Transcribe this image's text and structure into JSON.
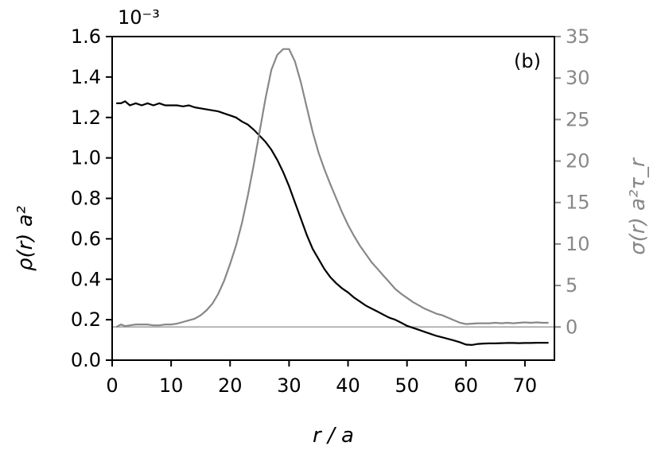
{
  "chart_data": {
    "type": "line",
    "panel_label": "(b)",
    "xlabel": "r / a",
    "ylabel_left": "ρ(r)   a²",
    "ylabel_right": "σ(r)   a²τ_r",
    "y_left_multiplier": "10⁻³",
    "xlim": [
      0,
      75
    ],
    "ylim_left": [
      0.0,
      1.6
    ],
    "ylim_right": [
      -4.0,
      35.0
    ],
    "x_ticks": [
      0,
      10,
      20,
      30,
      40,
      50,
      60,
      70
    ],
    "y_left_ticks": [
      "0.0",
      "0.2",
      "0.4",
      "0.6",
      "0.8",
      "1.0",
      "1.2",
      "1.4",
      "1.6"
    ],
    "y_right_ticks": [
      0,
      5,
      10,
      15,
      20,
      25,
      30,
      35
    ],
    "reference_line_right": 0,
    "colors": {
      "rho": "#000000",
      "sigma": "#888888",
      "reference": "#aaaaaa",
      "right_axis": "#888888"
    },
    "series": [
      {
        "axis": "left",
        "x": [
          0.7,
          1.5,
          2.2,
          3,
          4,
          5,
          6,
          7,
          8,
          9,
          10,
          11,
          12,
          13,
          14,
          15,
          16,
          17,
          18,
          19,
          20,
          21,
          22,
          23,
          24,
          25,
          26,
          27,
          28,
          29,
          30,
          31,
          32,
          33,
          34,
          35,
          36,
          37,
          38,
          39,
          40,
          41,
          42,
          43,
          44,
          45,
          46,
          47,
          48,
          49,
          50,
          51,
          52,
          53,
          54,
          55,
          56,
          57,
          58,
          59,
          60,
          61,
          62,
          63,
          64,
          65,
          66,
          67,
          68,
          69,
          70,
          71,
          72,
          73,
          74
        ],
        "y": [
          1.27,
          1.27,
          1.28,
          1.26,
          1.27,
          1.26,
          1.27,
          1.26,
          1.27,
          1.26,
          1.26,
          1.26,
          1.255,
          1.26,
          1.25,
          1.245,
          1.24,
          1.235,
          1.23,
          1.22,
          1.21,
          1.2,
          1.18,
          1.165,
          1.14,
          1.11,
          1.08,
          1.04,
          0.99,
          0.93,
          0.86,
          0.78,
          0.7,
          0.62,
          0.55,
          0.5,
          0.45,
          0.41,
          0.38,
          0.355,
          0.335,
          0.31,
          0.29,
          0.27,
          0.255,
          0.24,
          0.225,
          0.21,
          0.2,
          0.185,
          0.17,
          0.16,
          0.15,
          0.14,
          0.13,
          0.12,
          0.113,
          0.105,
          0.097,
          0.088,
          0.077,
          0.075,
          0.08,
          0.082,
          0.083,
          0.083,
          0.084,
          0.085,
          0.085,
          0.084,
          0.085,
          0.085,
          0.086,
          0.086,
          0.086
        ]
      },
      {
        "axis": "right",
        "x": [
          0.7,
          1.5,
          2.2,
          3,
          4,
          5,
          6,
          7,
          8,
          9,
          10,
          11,
          12,
          13,
          14,
          15,
          16,
          17,
          18,
          19,
          20,
          21,
          22,
          23,
          24,
          25,
          26,
          27,
          28,
          29,
          30,
          31,
          32,
          33,
          34,
          35,
          36,
          37,
          38,
          39,
          40,
          41,
          42,
          43,
          44,
          45,
          46,
          47,
          48,
          49,
          50,
          51,
          52,
          53,
          54,
          55,
          56,
          57,
          58,
          59,
          60,
          61,
          62,
          63,
          64,
          65,
          66,
          67,
          68,
          69,
          70,
          71,
          72,
          73,
          74
        ],
        "y": [
          0.0,
          0.3,
          0.1,
          0.2,
          0.3,
          0.3,
          0.3,
          0.2,
          0.2,
          0.3,
          0.3,
          0.4,
          0.6,
          0.8,
          1.0,
          1.4,
          2.0,
          2.8,
          4.0,
          5.6,
          7.6,
          9.8,
          12.5,
          15.8,
          19.5,
          23.5,
          27.5,
          31.0,
          32.8,
          33.5,
          33.5,
          32.0,
          29.5,
          26.5,
          23.5,
          21.0,
          19.0,
          17.2,
          15.5,
          13.8,
          12.3,
          11.0,
          9.8,
          8.8,
          7.8,
          7.0,
          6.2,
          5.4,
          4.6,
          4.0,
          3.5,
          3.0,
          2.6,
          2.2,
          1.9,
          1.6,
          1.4,
          1.1,
          0.8,
          0.5,
          0.35,
          0.4,
          0.45,
          0.45,
          0.45,
          0.5,
          0.45,
          0.5,
          0.45,
          0.5,
          0.55,
          0.5,
          0.55,
          0.5,
          0.5
        ]
      }
    ]
  }
}
